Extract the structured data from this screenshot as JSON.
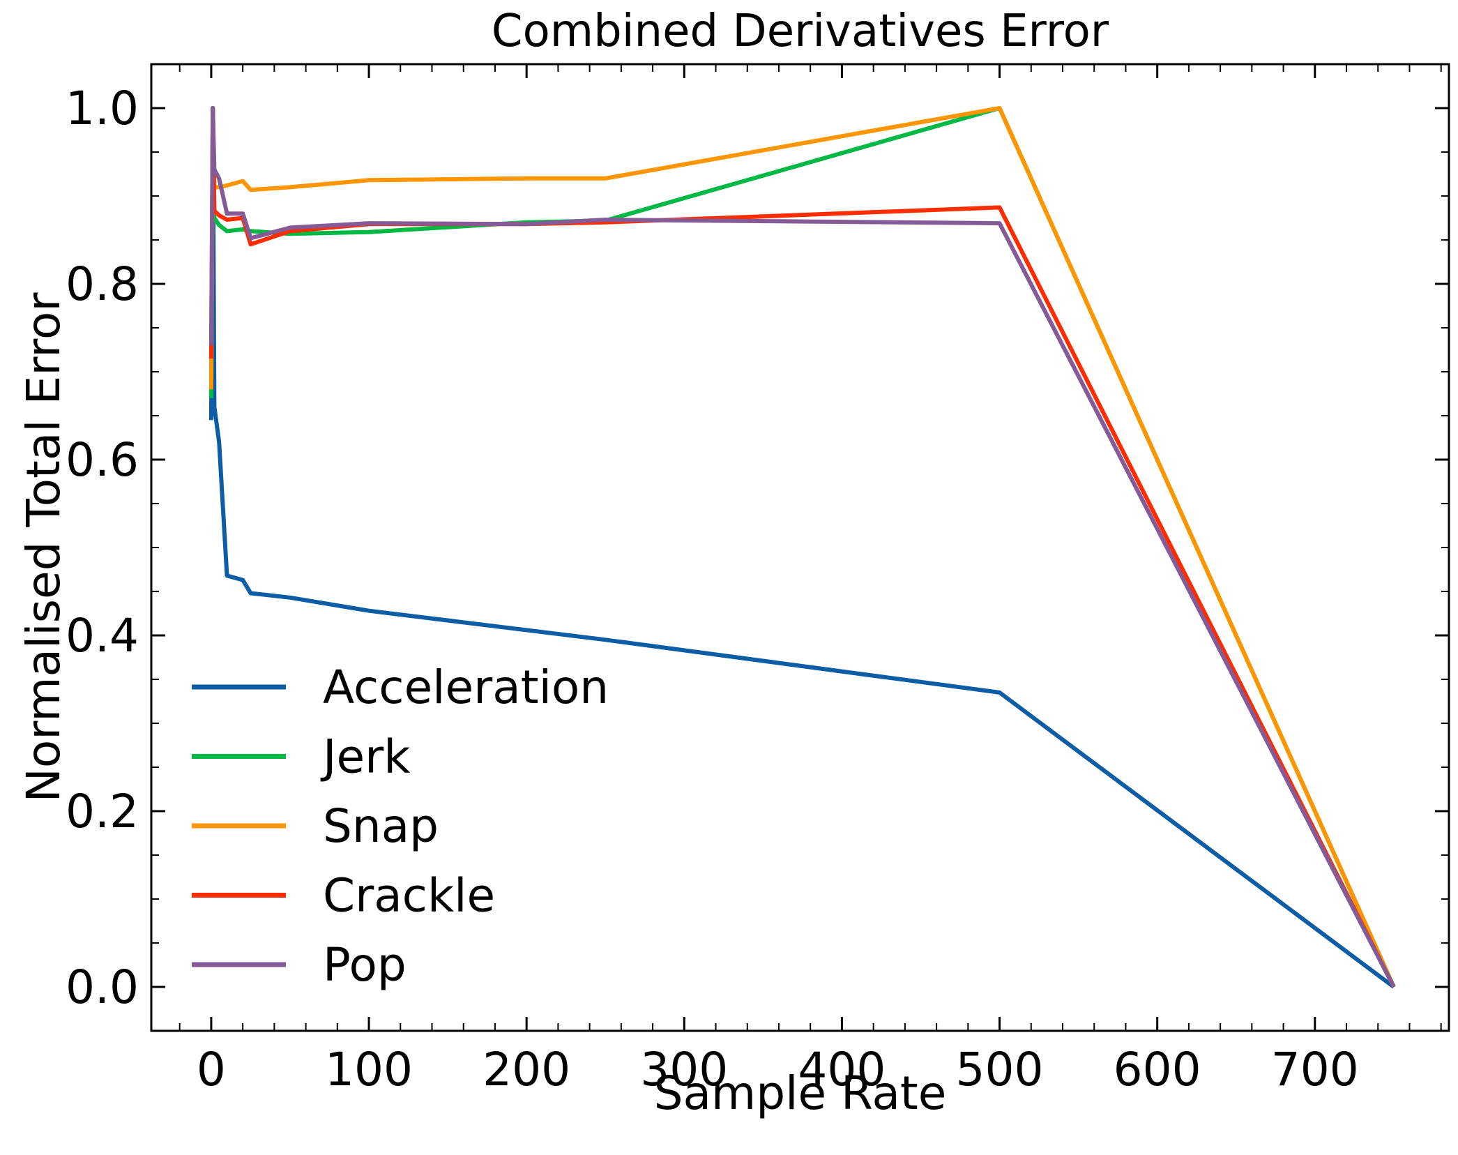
{
  "chart_data": {
    "type": "line",
    "title": "Combined Derivatives Error",
    "xlabel": "Sample Rate",
    "ylabel": "Normalised Total Error",
    "xlim": [
      -38,
      785
    ],
    "ylim": [
      -0.05,
      1.05
    ],
    "xticks": [
      0,
      100,
      200,
      300,
      400,
      500,
      600,
      700
    ],
    "yticks": [
      0.0,
      0.2,
      0.4,
      0.6,
      0.8,
      1.0
    ],
    "xtick_labels": [
      "0",
      "100",
      "200",
      "300",
      "400",
      "500",
      "600",
      "700"
    ],
    "ytick_labels": [
      "0.0",
      "0.2",
      "0.4",
      "0.6",
      "0.8",
      "1.0"
    ],
    "x_minor_step": 20,
    "y_minor_step": 0.05,
    "ticks_direction": "in",
    "ticks_on_all_sides": true,
    "grid": false,
    "legend_position": "lower-left",
    "series": [
      {
        "name": "Acceleration",
        "color": "#0C5DA5",
        "x": [
          0,
          1,
          2,
          5,
          10,
          20,
          25,
          50,
          100,
          250,
          500,
          750
        ],
        "y": [
          0.645,
          1.0,
          0.66,
          0.62,
          0.468,
          0.463,
          0.448,
          0.443,
          0.428,
          0.395,
          0.335,
          0.0
        ]
      },
      {
        "name": "Jerk",
        "color": "#00B945",
        "x": [
          0,
          1,
          2,
          5,
          10,
          20,
          25,
          50,
          100,
          200,
          250,
          500,
          750
        ],
        "y": [
          0.67,
          1.0,
          0.875,
          0.867,
          0.86,
          0.862,
          0.86,
          0.857,
          0.859,
          0.87,
          0.872,
          1.0,
          0.0
        ]
      },
      {
        "name": "Snap",
        "color": "#FF9500",
        "x": [
          0,
          1,
          2,
          5,
          10,
          20,
          25,
          50,
          100,
          200,
          250,
          500,
          750
        ],
        "y": [
          0.68,
          1.0,
          0.91,
          0.91,
          0.912,
          0.917,
          0.907,
          0.91,
          0.918,
          0.92,
          0.92,
          1.0,
          0.0
        ]
      },
      {
        "name": "Crackle",
        "color": "#FF2C00",
        "x": [
          0,
          1,
          2,
          5,
          10,
          20,
          25,
          50,
          100,
          200,
          250,
          500,
          750
        ],
        "y": [
          0.715,
          1.0,
          0.883,
          0.878,
          0.873,
          0.875,
          0.845,
          0.86,
          0.868,
          0.868,
          0.87,
          0.887,
          0.0
        ]
      },
      {
        "name": "Pop",
        "color": "#845B97",
        "x": [
          0,
          1,
          2,
          5,
          10,
          20,
          25,
          50,
          100,
          200,
          250,
          500,
          750
        ],
        "y": [
          0.73,
          1.0,
          0.93,
          0.92,
          0.88,
          0.88,
          0.852,
          0.864,
          0.869,
          0.868,
          0.873,
          0.869,
          0.0
        ]
      }
    ]
  }
}
